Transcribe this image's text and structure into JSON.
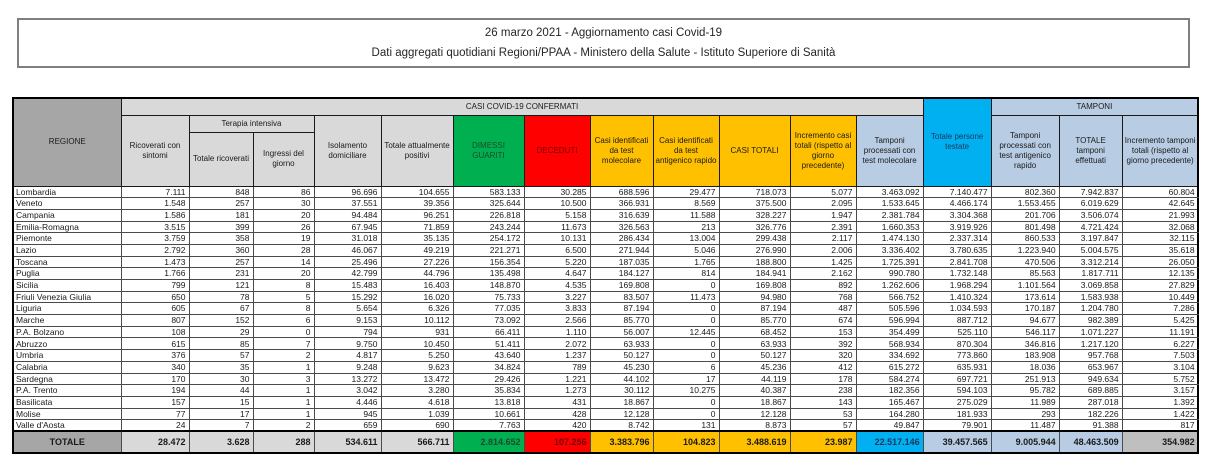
{
  "title": {
    "line1": "26 marzo 2021 - Aggiornamento casi Covid-19",
    "line2": "Dati aggregati quotidiani Regioni/PPAA - Ministero della Salute - Istituto Superiore di Sanità"
  },
  "colors": {
    "green": "#00b050",
    "red": "#ff0000",
    "yellow": "#ffc000",
    "cyan": "#00b0f0",
    "light_blue": "#b8cce4",
    "light_gray": "#d9d9d9",
    "dark_gray": "#a6a6a6"
  },
  "header": {
    "regione": "REGIONE",
    "casi_confermati": "CASI COVID-19 CONFERMATI",
    "tamponi_group": "TAMPONI",
    "ricoverati": "Ricoverati con sintomi",
    "terapia_intensiva": "Terapia intensiva",
    "totale_ricoverati": "Totale ricoverati",
    "ingressi_giorno": "Ingressi del giorno",
    "isolamento": "Isolamento domiciliare",
    "attualmente_positivi": "Totale attualmente positivi",
    "dimessi_guariti": "DIMESSI GUARITI",
    "deceduti": "DECEDUTI",
    "casi_molecolare": "Casi identificati da test molecolare",
    "casi_antigenico": "Casi identificati da test antigenico rapido",
    "casi_totali": "CASI TOTALI",
    "incremento_casi": "Incremento casi totali (rispetto al giorno precedente)",
    "persone_testate": "Totale persone testate",
    "tamponi_molecolare": "Tamponi processati con test molecolare",
    "tamponi_antigenico": "Tamponi processati con test antigenico rapido",
    "totale_tamponi": "TOTALE tamponi effettuati",
    "incremento_tamponi": "Incremento tamponi totali (rispetto al giorno precedente)"
  },
  "table": {
    "rows": [
      {
        "name": "Lombardia",
        "values": [
          "7.111",
          "848",
          "86",
          "96.696",
          "104.655",
          "583.133",
          "30.285",
          "688.596",
          "29.477",
          "718.073",
          "5.077",
          "3.463.092",
          "7.140.477",
          "802.360",
          "7.942.837",
          "60.804"
        ]
      },
      {
        "name": "Veneto",
        "values": [
          "1.548",
          "257",
          "30",
          "37.551",
          "39.356",
          "325.644",
          "10.500",
          "366.931",
          "8.569",
          "375.500",
          "2.095",
          "1.533.645",
          "4.466.174",
          "1.553.455",
          "6.019.629",
          "42.645"
        ]
      },
      {
        "name": "Campania",
        "values": [
          "1.586",
          "181",
          "20",
          "94.484",
          "96.251",
          "226.818",
          "5.158",
          "316.639",
          "11.588",
          "328.227",
          "1.947",
          "2.381.784",
          "3.304.368",
          "201.706",
          "3.506.074",
          "21.993"
        ]
      },
      {
        "name": "Emilia-Romagna",
        "values": [
          "3.515",
          "399",
          "26",
          "67.945",
          "71.859",
          "243.244",
          "11.673",
          "326.563",
          "213",
          "326.776",
          "2.391",
          "1.660.353",
          "3.919.926",
          "801.498",
          "4.721.424",
          "32.068"
        ]
      },
      {
        "name": "Piemonte",
        "values": [
          "3.759",
          "358",
          "19",
          "31.018",
          "35.135",
          "254.172",
          "10.131",
          "286.434",
          "13.004",
          "299.438",
          "2.117",
          "1.474.130",
          "2.337.314",
          "860.533",
          "3.197.847",
          "32.115"
        ]
      },
      {
        "name": "Lazio",
        "values": [
          "2.792",
          "360",
          "28",
          "46.067",
          "49.219",
          "221.271",
          "6.500",
          "271.944",
          "5.046",
          "276.990",
          "2.006",
          "3.336.402",
          "3.780.635",
          "1.223.940",
          "5.004.575",
          "35.618"
        ]
      },
      {
        "name": "Toscana",
        "values": [
          "1.473",
          "257",
          "14",
          "25.496",
          "27.226",
          "156.354",
          "5.220",
          "187.035",
          "1.765",
          "188.800",
          "1.425",
          "1.725.391",
          "2.841.708",
          "470.506",
          "3.312.214",
          "26.050"
        ]
      },
      {
        "name": "Puglia",
        "values": [
          "1.766",
          "231",
          "20",
          "42.799",
          "44.796",
          "135.498",
          "4.647",
          "184.127",
          "814",
          "184.941",
          "2.162",
          "990.780",
          "1.732.148",
          "85.563",
          "1.817.711",
          "12.135"
        ]
      },
      {
        "name": "Sicilia",
        "values": [
          "799",
          "121",
          "8",
          "15.483",
          "16.403",
          "148.870",
          "4.535",
          "169.808",
          "0",
          "169.808",
          "892",
          "1.262.606",
          "1.968.294",
          "1.101.564",
          "3.069.858",
          "27.829"
        ]
      },
      {
        "name": "Friuli Venezia Giulia",
        "values": [
          "650",
          "78",
          "5",
          "15.292",
          "16.020",
          "75.733",
          "3.227",
          "83.507",
          "11.473",
          "94.980",
          "768",
          "566.752",
          "1.410.324",
          "173.614",
          "1.583.938",
          "10.449"
        ]
      },
      {
        "name": "Liguria",
        "values": [
          "605",
          "67",
          "8",
          "5.654",
          "6.326",
          "77.035",
          "3.833",
          "87.194",
          "0",
          "87.194",
          "487",
          "505.596",
          "1.034.593",
          "170.187",
          "1.204.780",
          "7.286"
        ]
      },
      {
        "name": "Marche",
        "values": [
          "807",
          "152",
          "6",
          "9.153",
          "10.112",
          "73.092",
          "2.566",
          "85.770",
          "0",
          "85.770",
          "674",
          "596.994",
          "887.712",
          "94.677",
          "982.389",
          "5.425"
        ]
      },
      {
        "name": "P.A. Bolzano",
        "values": [
          "108",
          "29",
          "0",
          "794",
          "931",
          "66.411",
          "1.110",
          "56.007",
          "12.445",
          "68.452",
          "153",
          "354.499",
          "525.110",
          "546.117",
          "1.071.227",
          "11.191"
        ]
      },
      {
        "name": "Abruzzo",
        "values": [
          "615",
          "85",
          "7",
          "9.750",
          "10.450",
          "51.411",
          "2.072",
          "63.933",
          "0",
          "63.933",
          "392",
          "568.934",
          "870.304",
          "346.816",
          "1.217.120",
          "6.227"
        ]
      },
      {
        "name": "Umbria",
        "values": [
          "376",
          "57",
          "2",
          "4.817",
          "5.250",
          "43.640",
          "1.237",
          "50.127",
          "0",
          "50.127",
          "320",
          "334.692",
          "773.860",
          "183.908",
          "957.768",
          "7.503"
        ]
      },
      {
        "name": "Calabria",
        "values": [
          "340",
          "35",
          "1",
          "9.248",
          "9.623",
          "34.824",
          "789",
          "45.230",
          "6",
          "45.236",
          "412",
          "615.272",
          "635.931",
          "18.036",
          "653.967",
          "3.104"
        ]
      },
      {
        "name": "Sardegna",
        "values": [
          "170",
          "30",
          "3",
          "13.272",
          "13.472",
          "29.426",
          "1.221",
          "44.102",
          "17",
          "44.119",
          "178",
          "584.274",
          "697.721",
          "251.913",
          "949.634",
          "5.752"
        ]
      },
      {
        "name": "P.A. Trento",
        "values": [
          "194",
          "44",
          "1",
          "3.042",
          "3.280",
          "35.834",
          "1.273",
          "30.112",
          "10.275",
          "40.387",
          "238",
          "182.356",
          "594.103",
          "95.782",
          "689.885",
          "3.157"
        ]
      },
      {
        "name": "Basilicata",
        "values": [
          "157",
          "15",
          "1",
          "4.446",
          "4.618",
          "13.818",
          "431",
          "18.867",
          "0",
          "18.867",
          "143",
          "165.467",
          "275.029",
          "11.989",
          "287.018",
          "1.392"
        ]
      },
      {
        "name": "Molise",
        "values": [
          "77",
          "17",
          "1",
          "945",
          "1.039",
          "10.661",
          "428",
          "12.128",
          "0",
          "12.128",
          "53",
          "164.280",
          "181.933",
          "293",
          "182.226",
          "1.422"
        ]
      },
      {
        "name": "Valle d'Aosta",
        "values": [
          "24",
          "7",
          "2",
          "659",
          "690",
          "7.763",
          "420",
          "8.742",
          "131",
          "8.873",
          "57",
          "49.847",
          "79.901",
          "11.487",
          "91.388",
          "817"
        ]
      }
    ],
    "totale": {
      "label": "TOTALE",
      "values": [
        "28.472",
        "3.628",
        "288",
        "534.611",
        "566.711",
        "2.814.652",
        "107.256",
        "3.383.796",
        "104.823",
        "3.488.619",
        "23.987",
        "22.517.146",
        "39.457.565",
        "9.005.944",
        "48.463.509",
        "354.982"
      ]
    }
  }
}
